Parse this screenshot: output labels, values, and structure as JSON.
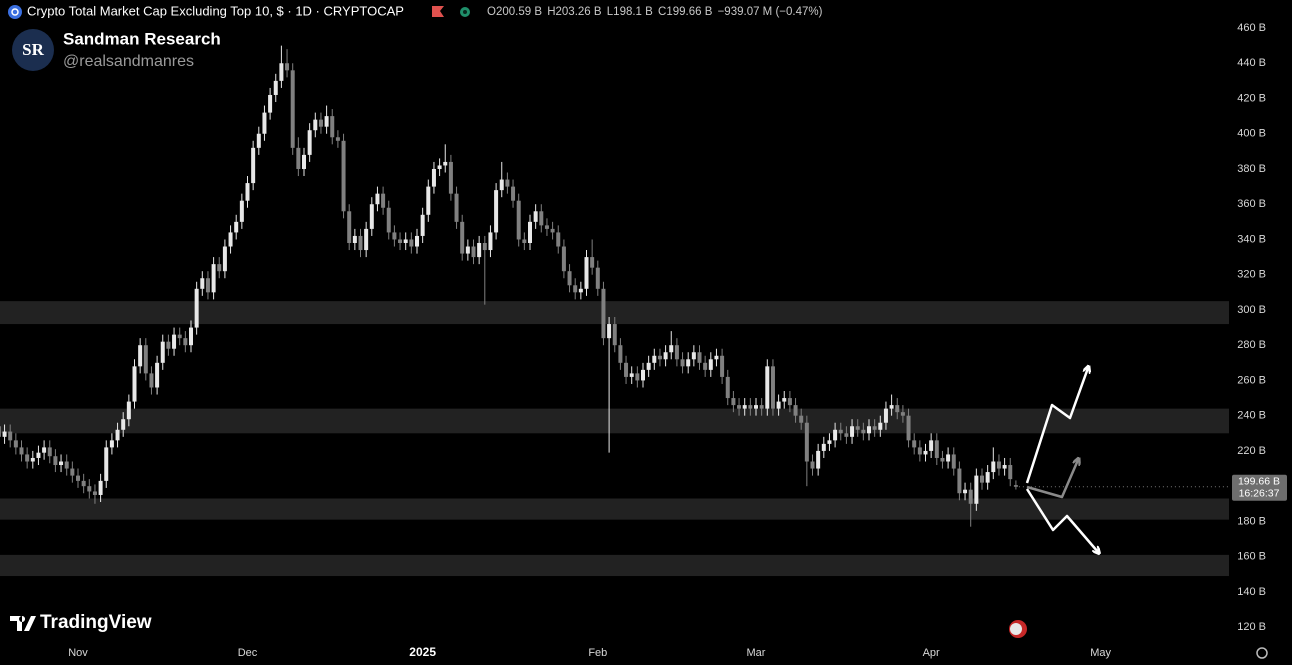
{
  "chart_data": {
    "type": "candlestick",
    "title": "Crypto Total Market Cap Excluding Top 10, $ · 1D · CRYPTOCAP",
    "ohlc_labels": [
      "O",
      "H",
      "L",
      "C"
    ],
    "legend_values": [
      "200.59 B",
      "203.26 B",
      "198.1 B",
      "199.66 B"
    ],
    "change": "−939.07 M (−0.47%)",
    "last_price_label": "199.66 B",
    "countdown": "16:26:37",
    "branding": {
      "name": "Sandman Research",
      "handle": "@realsandmanres",
      "logo": "SR",
      "platform": "TradingView"
    },
    "up_color": "#e8e8e8",
    "down_color": "#808080",
    "zone_color": "#222222",
    "grid": false,
    "ylim": [
      112.7,
      475.9
    ],
    "yticks": [
      {
        "value": 120,
        "label": "120 B"
      },
      {
        "value": 140,
        "label": "140 B"
      },
      {
        "value": 160,
        "label": "160 B"
      },
      {
        "value": 180,
        "label": "180 B"
      },
      {
        "value": 200,
        "label": "200 B"
      },
      {
        "value": 220,
        "label": "220 B"
      },
      {
        "value": 240,
        "label": "240 B"
      },
      {
        "value": 260,
        "label": "260 B"
      },
      {
        "value": 280,
        "label": "280 B"
      },
      {
        "value": 300,
        "label": "300 B"
      },
      {
        "value": 320,
        "label": "320 B"
      },
      {
        "value": 340,
        "label": "340 B"
      },
      {
        "value": 360,
        "label": "360 B"
      },
      {
        "value": 380,
        "label": "380 B"
      },
      {
        "value": 400,
        "label": "400 B"
      },
      {
        "value": 420,
        "label": "420 B"
      },
      {
        "value": 440,
        "label": "440 B"
      },
      {
        "value": 460,
        "label": "460 B"
      }
    ],
    "zones": [
      [
        292,
        305
      ],
      [
        230,
        244
      ],
      [
        181,
        193
      ],
      [
        149,
        161
      ]
    ],
    "categories": [
      null,
      null,
      null,
      null,
      null,
      null,
      null,
      null,
      null,
      null,
      null,
      null,
      null,
      null,
      "Nov",
      null,
      null,
      null,
      null,
      null,
      null,
      null,
      null,
      null,
      null,
      null,
      null,
      null,
      null,
      null,
      null,
      null,
      null,
      null,
      null,
      null,
      null,
      null,
      null,
      null,
      null,
      null,
      null,
      null,
      "Dec",
      null,
      null,
      null,
      null,
      null,
      null,
      null,
      null,
      null,
      null,
      null,
      null,
      null,
      null,
      null,
      null,
      null,
      null,
      null,
      null,
      null,
      null,
      null,
      null,
      null,
      null,
      null,
      null,
      null,
      null,
      "2025",
      null,
      null,
      null,
      null,
      null,
      null,
      null,
      null,
      null,
      null,
      null,
      null,
      null,
      null,
      null,
      null,
      null,
      null,
      null,
      null,
      null,
      null,
      null,
      null,
      null,
      null,
      null,
      null,
      null,
      null,
      "Feb",
      null,
      null,
      null,
      null,
      null,
      null,
      null,
      null,
      null,
      null,
      null,
      null,
      null,
      null,
      null,
      null,
      null,
      null,
      null,
      null,
      null,
      null,
      null,
      null,
      null,
      null,
      null,
      "Mar",
      null,
      null,
      null,
      null,
      null,
      null,
      null,
      null,
      null,
      null,
      null,
      null,
      null,
      null,
      null,
      null,
      null,
      null,
      null,
      null,
      null,
      null,
      null,
      null,
      null,
      null,
      null,
      null,
      null,
      null,
      "Apr",
      null,
      null,
      null,
      null,
      null,
      null,
      null,
      null,
      null,
      null,
      null,
      null,
      null,
      null,
      null,
      null,
      null,
      null,
      null,
      null,
      null,
      null,
      null,
      null,
      null,
      null,
      null,
      null,
      null,
      "May"
    ],
    "open": [
      234,
      228,
      231,
      226,
      222,
      218,
      214,
      216,
      219,
      222,
      217,
      212,
      214,
      210,
      206,
      203,
      200,
      197,
      195,
      203,
      222,
      226,
      232,
      238,
      248,
      268,
      280,
      264,
      256,
      270,
      282,
      278,
      286,
      284,
      280,
      290,
      312,
      318,
      310,
      326,
      322,
      336,
      344,
      350,
      362,
      372,
      392,
      400,
      412,
      422,
      430,
      440,
      436,
      392,
      380,
      388,
      402,
      408,
      404,
      410,
      398,
      396,
      356,
      338,
      342,
      334,
      346,
      360,
      366,
      358,
      344,
      340,
      338,
      340,
      336,
      342,
      354,
      370,
      380,
      382,
      384,
      366,
      350,
      332,
      336,
      330,
      338,
      334,
      344,
      368,
      374,
      370,
      362,
      340,
      338,
      350,
      356,
      348,
      346,
      344,
      336,
      322,
      314,
      310,
      312,
      330,
      324,
      312,
      284,
      292,
      280,
      270,
      262,
      264,
      260,
      266,
      270,
      274,
      272,
      276,
      280,
      272,
      268,
      272,
      276,
      270,
      266,
      272,
      274,
      262,
      250,
      246,
      244,
      246,
      244,
      246,
      244,
      268,
      244,
      248,
      250,
      246,
      240,
      236,
      214,
      210,
      220,
      224,
      226,
      232,
      230,
      228,
      234,
      232,
      230,
      234,
      232,
      236,
      244,
      246,
      242,
      240,
      226,
      222,
      218,
      220,
      226,
      216,
      214,
      218,
      210,
      196,
      198,
      190,
      206,
      202,
      208,
      214,
      210,
      212,
      200.59,
      null,
      null,
      null,
      null,
      null,
      null,
      null,
      null,
      null,
      null,
      null,
      null,
      null,
      null,
      null
    ],
    "high": [
      238,
      235,
      235,
      230,
      226,
      222,
      220,
      223,
      226,
      226,
      221,
      218,
      218,
      214,
      210,
      207,
      204,
      201,
      207,
      226,
      230,
      236,
      242,
      252,
      272,
      284,
      284,
      268,
      274,
      286,
      286,
      290,
      290,
      288,
      294,
      316,
      322,
      322,
      330,
      330,
      340,
      348,
      354,
      366,
      376,
      396,
      404,
      416,
      426,
      434,
      450,
      448,
      440,
      398,
      392,
      406,
      412,
      412,
      416,
      414,
      402,
      400,
      360,
      346,
      346,
      350,
      364,
      370,
      370,
      362,
      348,
      344,
      344,
      344,
      346,
      358,
      374,
      384,
      386,
      394,
      388,
      370,
      354,
      340,
      340,
      342,
      342,
      348,
      372,
      384,
      378,
      374,
      366,
      344,
      354,
      360,
      360,
      352,
      350,
      348,
      340,
      326,
      318,
      316,
      334,
      340,
      328,
      316,
      296,
      296,
      284,
      274,
      268,
      268,
      270,
      274,
      278,
      278,
      280,
      288,
      284,
      276,
      276,
      280,
      280,
      274,
      276,
      278,
      278,
      266,
      254,
      250,
      250,
      250,
      250,
      250,
      272,
      272,
      252,
      254,
      254,
      250,
      244,
      240,
      218,
      224,
      228,
      230,
      236,
      236,
      234,
      238,
      238,
      236,
      238,
      238,
      240,
      248,
      252,
      250,
      246,
      244,
      230,
      226,
      224,
      230,
      230,
      220,
      222,
      222,
      214,
      202,
      202,
      210,
      210,
      212,
      222,
      218,
      216,
      216,
      203.26,
      null,
      null,
      null,
      null,
      null,
      null,
      null,
      null,
      null,
      null,
      null,
      null,
      null,
      null,
      null
    ],
    "low": [
      224,
      224,
      222,
      218,
      214,
      210,
      210,
      212,
      215,
      213,
      208,
      208,
      206,
      202,
      199,
      196,
      193,
      190,
      191,
      199,
      218,
      222,
      228,
      234,
      244,
      264,
      260,
      252,
      252,
      266,
      274,
      274,
      280,
      276,
      276,
      286,
      308,
      306,
      306,
      318,
      318,
      332,
      340,
      346,
      358,
      368,
      388,
      396,
      408,
      418,
      426,
      432,
      388,
      376,
      376,
      384,
      398,
      400,
      400,
      394,
      392,
      352,
      334,
      334,
      330,
      330,
      342,
      356,
      354,
      340,
      336,
      334,
      334,
      332,
      332,
      338,
      350,
      366,
      376,
      378,
      362,
      346,
      328,
      328,
      326,
      326,
      303,
      330,
      340,
      364,
      366,
      358,
      336,
      334,
      334,
      346,
      344,
      342,
      340,
      332,
      318,
      310,
      306,
      306,
      308,
      320,
      308,
      280,
      219,
      276,
      266,
      258,
      258,
      256,
      256,
      262,
      266,
      268,
      268,
      272,
      268,
      264,
      264,
      268,
      266,
      262,
      262,
      268,
      258,
      246,
      242,
      240,
      240,
      240,
      240,
      240,
      240,
      240,
      240,
      244,
      242,
      236,
      232,
      200,
      206,
      206,
      216,
      220,
      222,
      226,
      224,
      224,
      228,
      226,
      226,
      228,
      228,
      232,
      240,
      238,
      236,
      222,
      218,
      214,
      214,
      216,
      212,
      210,
      210,
      206,
      192,
      192,
      177,
      186,
      198,
      198,
      204,
      206,
      206,
      200,
      198.1,
      null,
      null,
      null,
      null,
      null,
      null,
      null,
      null,
      null,
      null,
      null,
      null,
      null,
      null,
      null
    ],
    "close": [
      228,
      231,
      226,
      222,
      218,
      214,
      216,
      219,
      222,
      217,
      212,
      214,
      210,
      206,
      203,
      200,
      197,
      195,
      203,
      222,
      226,
      232,
      238,
      248,
      268,
      280,
      264,
      256,
      270,
      282,
      278,
      286,
      284,
      280,
      290,
      312,
      318,
      310,
      326,
      322,
      336,
      344,
      350,
      362,
      372,
      392,
      400,
      412,
      422,
      430,
      440,
      436,
      392,
      380,
      388,
      402,
      408,
      404,
      410,
      398,
      396,
      356,
      338,
      342,
      334,
      346,
      360,
      366,
      358,
      344,
      340,
      338,
      340,
      336,
      342,
      354,
      370,
      380,
      382,
      384,
      366,
      350,
      332,
      336,
      330,
      338,
      334,
      344,
      368,
      374,
      370,
      362,
      340,
      338,
      350,
      356,
      348,
      346,
      344,
      336,
      322,
      314,
      310,
      312,
      330,
      324,
      312,
      284,
      292,
      280,
      270,
      262,
      264,
      260,
      266,
      270,
      274,
      272,
      276,
      280,
      272,
      268,
      272,
      276,
      270,
      266,
      272,
      274,
      262,
      250,
      246,
      244,
      246,
      244,
      246,
      244,
      268,
      244,
      248,
      250,
      246,
      240,
      236,
      214,
      210,
      220,
      224,
      226,
      232,
      230,
      228,
      234,
      232,
      230,
      234,
      232,
      236,
      244,
      246,
      242,
      240,
      226,
      222,
      218,
      220,
      226,
      216,
      214,
      218,
      210,
      196,
      198,
      190,
      206,
      202,
      208,
      214,
      210,
      212,
      204,
      199.66,
      null,
      null,
      null,
      null,
      null,
      null,
      null,
      null,
      null,
      null,
      null,
      null,
      null,
      null,
      null
    ]
  }
}
